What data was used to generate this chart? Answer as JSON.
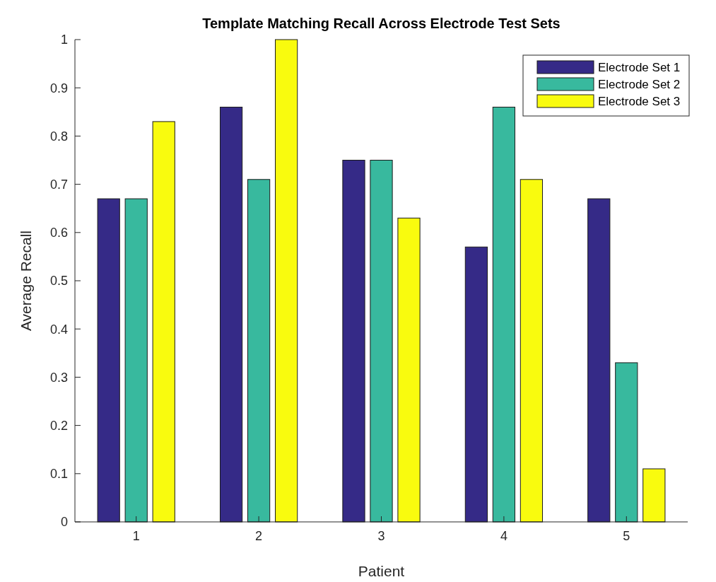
{
  "chart_data": {
    "type": "bar",
    "title": "Template Matching Recall Across Electrode Test Sets",
    "xlabel": "Patient",
    "ylabel": "Average Recall",
    "categories": [
      "1",
      "2",
      "3",
      "4",
      "5"
    ],
    "series": [
      {
        "name": "Electrode Set 1",
        "color": "#352a87",
        "values": [
          0.67,
          0.86,
          0.75,
          0.57,
          0.67
        ]
      },
      {
        "name": "Electrode Set 2",
        "color": "#38b99e",
        "values": [
          0.67,
          0.71,
          0.75,
          0.86,
          0.33
        ]
      },
      {
        "name": "Electrode Set 3",
        "color": "#f9fb0e",
        "values": [
          0.83,
          1,
          0.63,
          0.71,
          0.11
        ]
      }
    ],
    "ylim": [
      0,
      1
    ],
    "yticks": [
      0,
      0.1,
      0.2,
      0.3,
      0.4,
      0.5,
      0.6,
      0.7,
      0.8,
      0.9,
      1
    ],
    "grid": false,
    "legend": "top right"
  }
}
